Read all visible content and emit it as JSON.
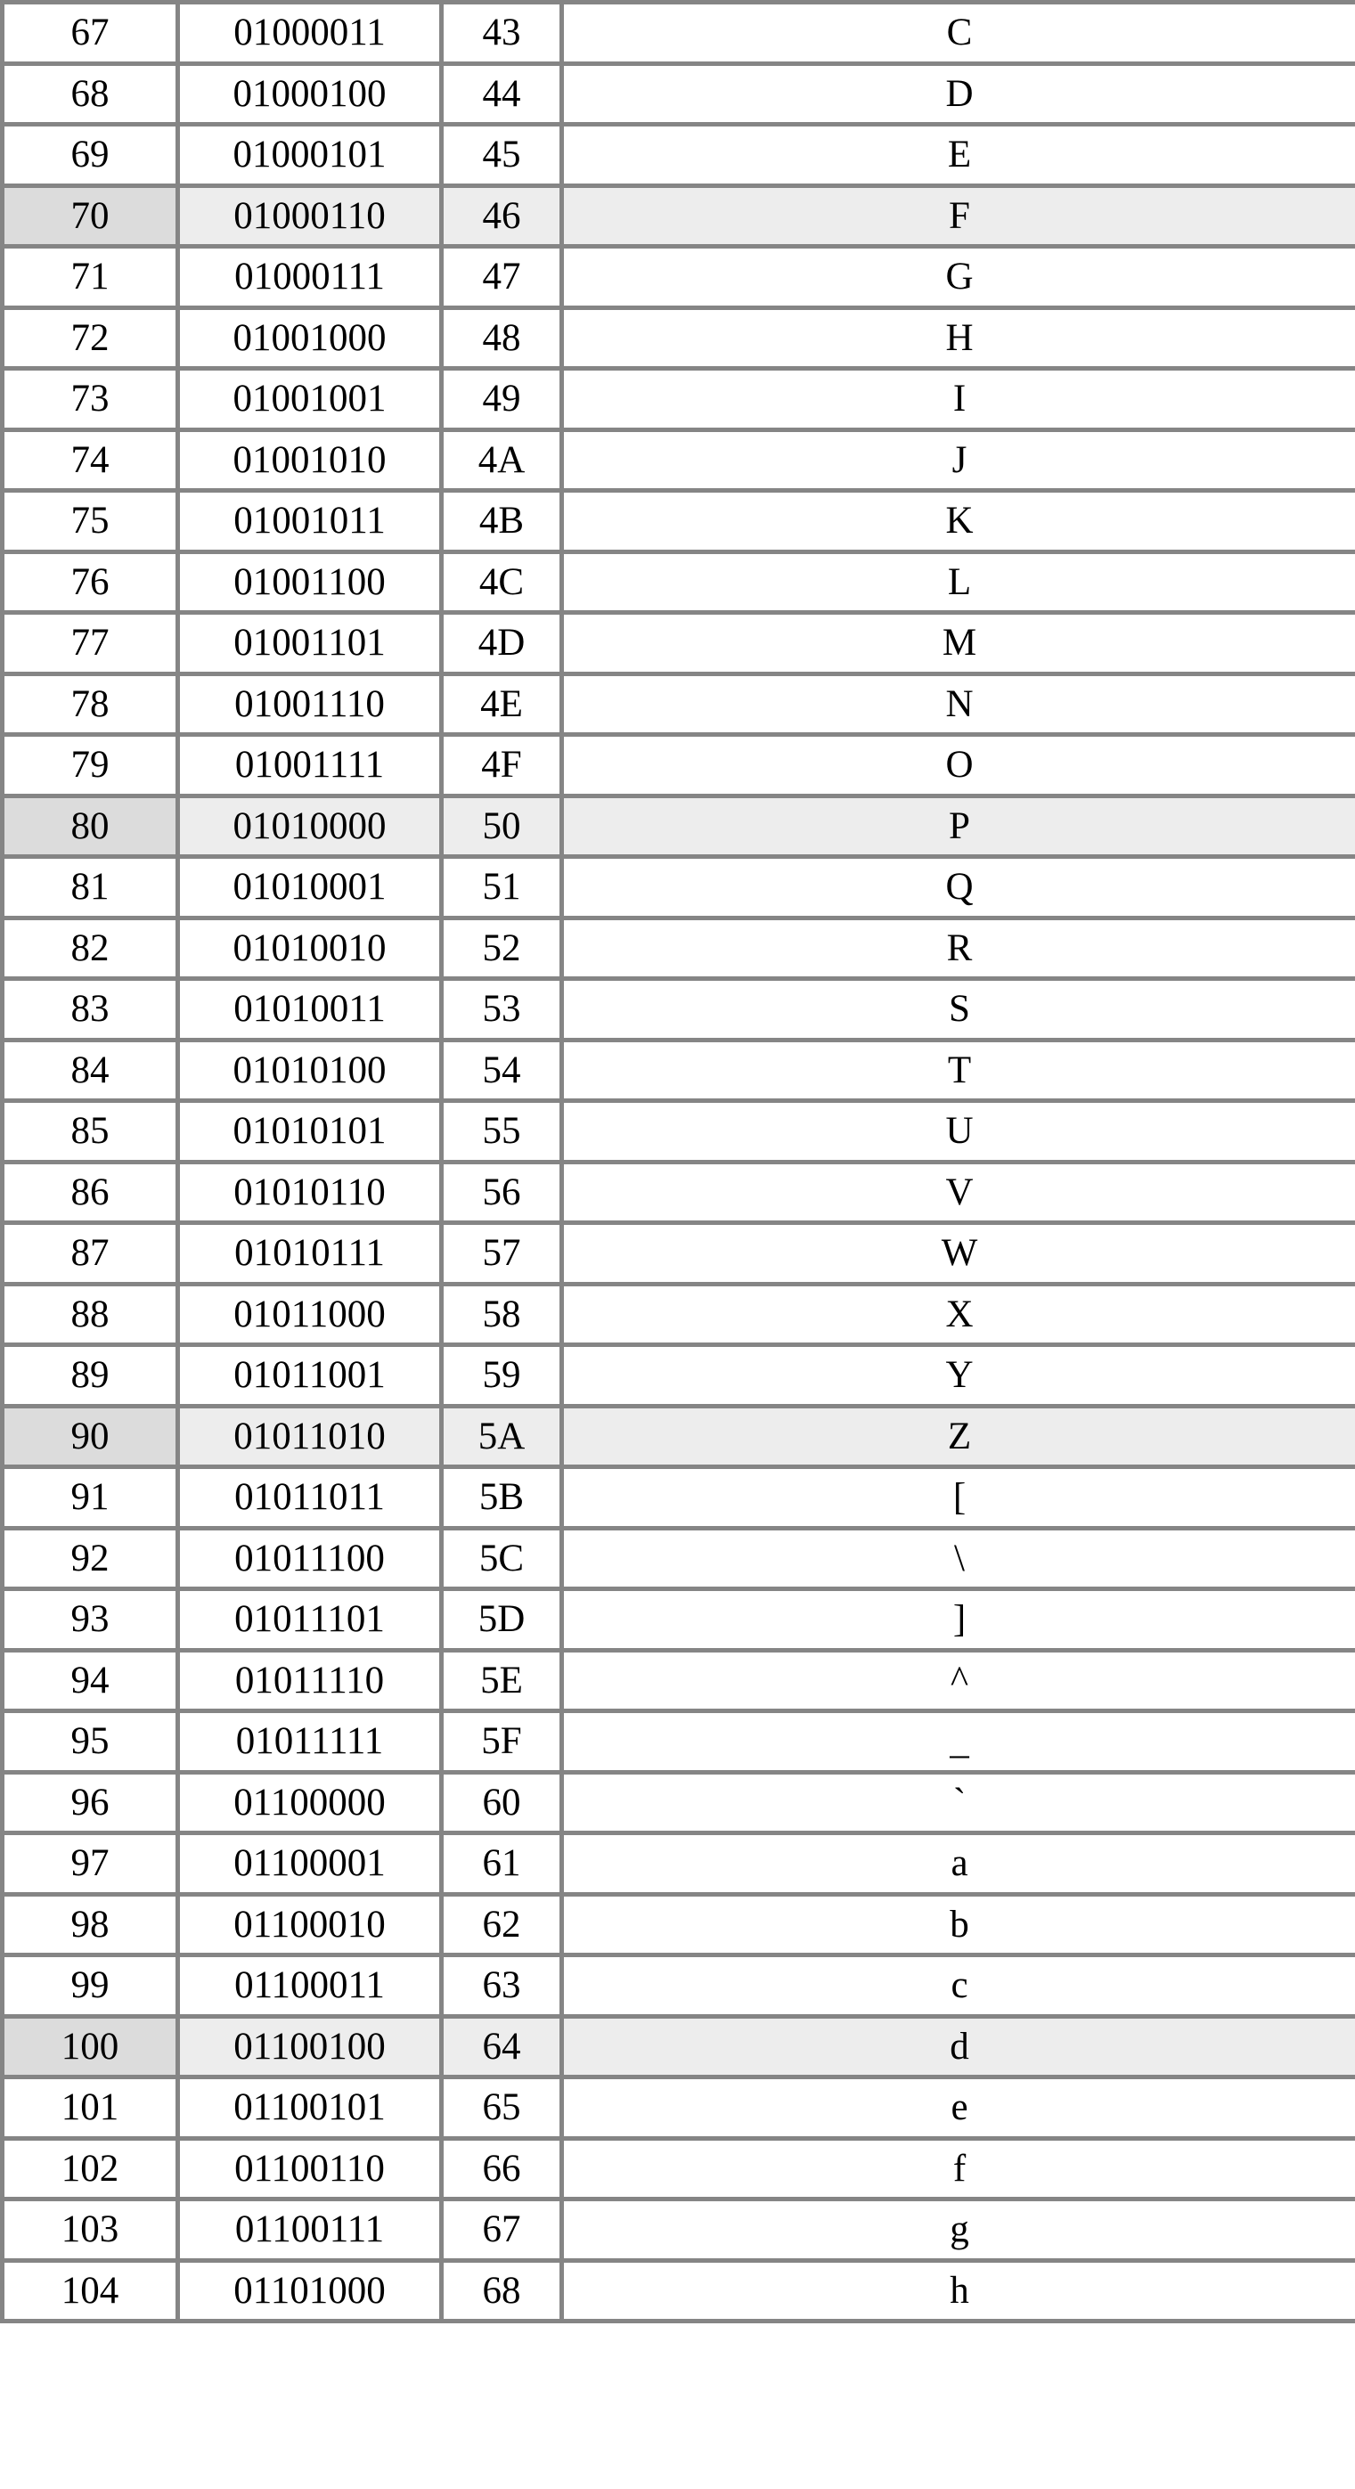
{
  "colors": {
    "border": "#858585",
    "highlight_first_cell": "#dcdcdc",
    "highlight_row": "#ededed"
  },
  "table": {
    "rows": [
      {
        "dec": "67",
        "bin": "01000011",
        "hex": "43",
        "char": "C"
      },
      {
        "dec": "68",
        "bin": "01000100",
        "hex": "44",
        "char": "D"
      },
      {
        "dec": "69",
        "bin": "01000101",
        "hex": "45",
        "char": "E"
      },
      {
        "dec": "70",
        "bin": "01000110",
        "hex": "46",
        "char": "F",
        "highlighted": true
      },
      {
        "dec": "71",
        "bin": "01000111",
        "hex": "47",
        "char": "G"
      },
      {
        "dec": "72",
        "bin": "01001000",
        "hex": "48",
        "char": "H"
      },
      {
        "dec": "73",
        "bin": "01001001",
        "hex": "49",
        "char": "I"
      },
      {
        "dec": "74",
        "bin": "01001010",
        "hex": "4A",
        "char": "J"
      },
      {
        "dec": "75",
        "bin": "01001011",
        "hex": "4B",
        "char": "K"
      },
      {
        "dec": "76",
        "bin": "01001100",
        "hex": "4C",
        "char": "L"
      },
      {
        "dec": "77",
        "bin": "01001101",
        "hex": "4D",
        "char": "M"
      },
      {
        "dec": "78",
        "bin": "01001110",
        "hex": "4E",
        "char": "N"
      },
      {
        "dec": "79",
        "bin": "01001111",
        "hex": "4F",
        "char": "O"
      },
      {
        "dec": "80",
        "bin": "01010000",
        "hex": "50",
        "char": "P",
        "highlighted": true
      },
      {
        "dec": "81",
        "bin": "01010001",
        "hex": "51",
        "char": "Q"
      },
      {
        "dec": "82",
        "bin": "01010010",
        "hex": "52",
        "char": "R"
      },
      {
        "dec": "83",
        "bin": "01010011",
        "hex": "53",
        "char": "S"
      },
      {
        "dec": "84",
        "bin": "01010100",
        "hex": "54",
        "char": "T"
      },
      {
        "dec": "85",
        "bin": "01010101",
        "hex": "55",
        "char": "U"
      },
      {
        "dec": "86",
        "bin": "01010110",
        "hex": "56",
        "char": "V"
      },
      {
        "dec": "87",
        "bin": "01010111",
        "hex": "57",
        "char": "W"
      },
      {
        "dec": "88",
        "bin": "01011000",
        "hex": "58",
        "char": "X"
      },
      {
        "dec": "89",
        "bin": "01011001",
        "hex": "59",
        "char": "Y"
      },
      {
        "dec": "90",
        "bin": "01011010",
        "hex": "5A",
        "char": "Z",
        "highlighted": true
      },
      {
        "dec": "91",
        "bin": "01011011",
        "hex": "5B",
        "char": "["
      },
      {
        "dec": "92",
        "bin": "01011100",
        "hex": "5C",
        "char": "\\"
      },
      {
        "dec": "93",
        "bin": "01011101",
        "hex": "5D",
        "char": "]"
      },
      {
        "dec": "94",
        "bin": "01011110",
        "hex": "5E",
        "char": "^"
      },
      {
        "dec": "95",
        "bin": "01011111",
        "hex": "5F",
        "char": "_"
      },
      {
        "dec": "96",
        "bin": "01100000",
        "hex": "60",
        "char": "`"
      },
      {
        "dec": "97",
        "bin": "01100001",
        "hex": "61",
        "char": "a"
      },
      {
        "dec": "98",
        "bin": "01100010",
        "hex": "62",
        "char": "b"
      },
      {
        "dec": "99",
        "bin": "01100011",
        "hex": "63",
        "char": "c"
      },
      {
        "dec": "100",
        "bin": "01100100",
        "hex": "64",
        "char": "d",
        "highlighted": true
      },
      {
        "dec": "101",
        "bin": "01100101",
        "hex": "65",
        "char": "e"
      },
      {
        "dec": "102",
        "bin": "01100110",
        "hex": "66",
        "char": "f"
      },
      {
        "dec": "103",
        "bin": "01100111",
        "hex": "67",
        "char": "g"
      },
      {
        "dec": "104",
        "bin": "01101000",
        "hex": "68",
        "char": "h"
      }
    ]
  }
}
